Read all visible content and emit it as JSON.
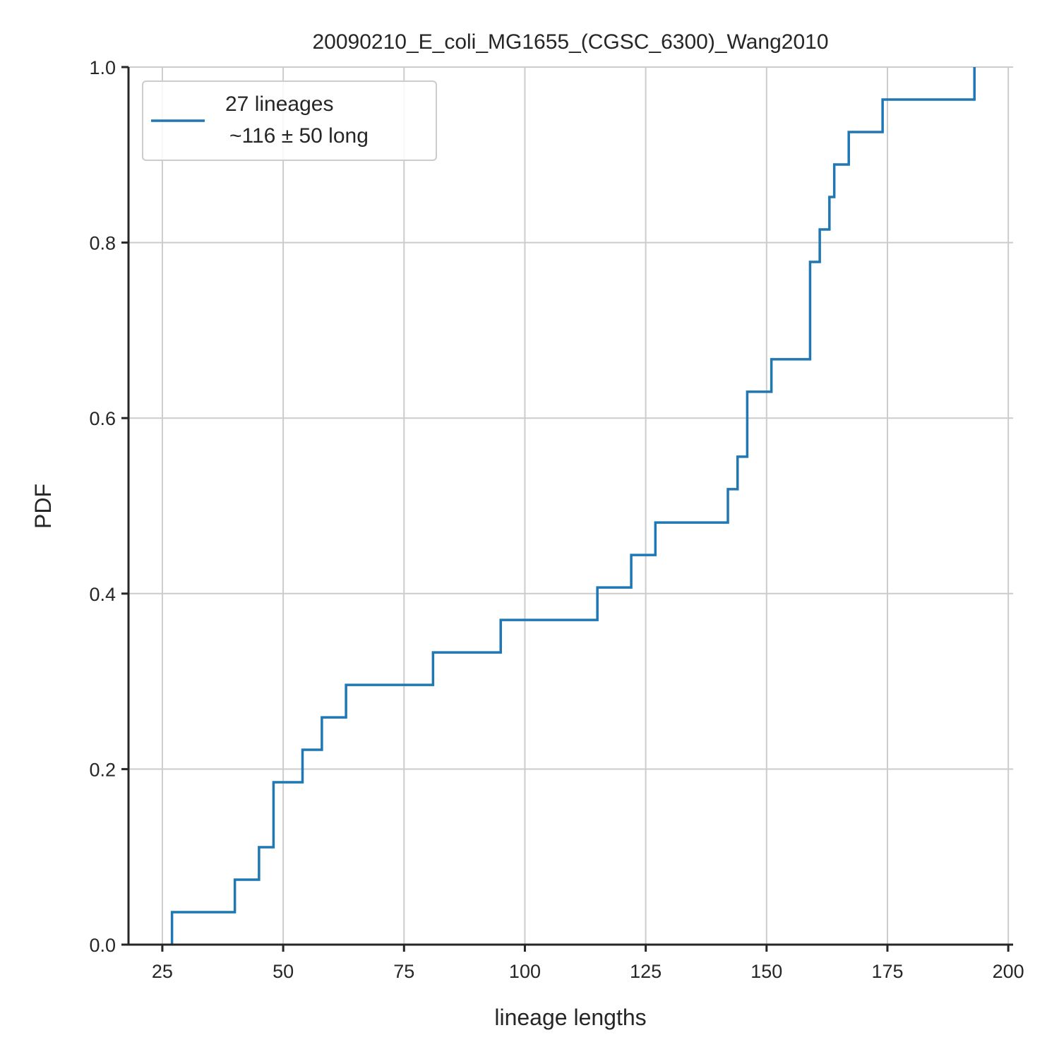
{
  "chart_data": {
    "type": "line",
    "drawstyle": "steps-post",
    "title": "20090210_E_coli_MG1655_(CGSC_6300)_Wang2010",
    "xlabel": "lineage lengths",
    "ylabel": "PDF",
    "xlim": [
      18,
      201
    ],
    "ylim": [
      0,
      1.0
    ],
    "xticks": [
      25,
      50,
      75,
      100,
      125,
      150,
      175,
      200
    ],
    "xtick_labels": [
      "25",
      "50",
      "75",
      "100",
      "125",
      "150",
      "175",
      "200"
    ],
    "yticks": [
      0.0,
      0.2,
      0.4,
      0.6,
      0.8,
      1.0
    ],
    "ytick_labels": [
      "0.0",
      "0.2",
      "0.4",
      "0.6",
      "0.8",
      "1.0"
    ],
    "grid": true,
    "legend_position": "top-left",
    "legend": {
      "line1": "27 lineages",
      "line2": "~116 ± 50 long"
    },
    "series": [
      {
        "name": "27 lineages ~116 ± 50 long",
        "color": "#1f77b4",
        "x": [
          27,
          40,
          45,
          48,
          54,
          58,
          63,
          81,
          95,
          115,
          122,
          127,
          142,
          144,
          146,
          151,
          159,
          161,
          163,
          164,
          167,
          174,
          193
        ],
        "y": [
          0.037,
          0.074,
          0.111,
          0.185,
          0.222,
          0.259,
          0.296,
          0.333,
          0.37,
          0.407,
          0.444,
          0.481,
          0.519,
          0.556,
          0.63,
          0.667,
          0.778,
          0.815,
          0.852,
          0.889,
          0.926,
          0.963,
          1.0
        ]
      }
    ]
  }
}
